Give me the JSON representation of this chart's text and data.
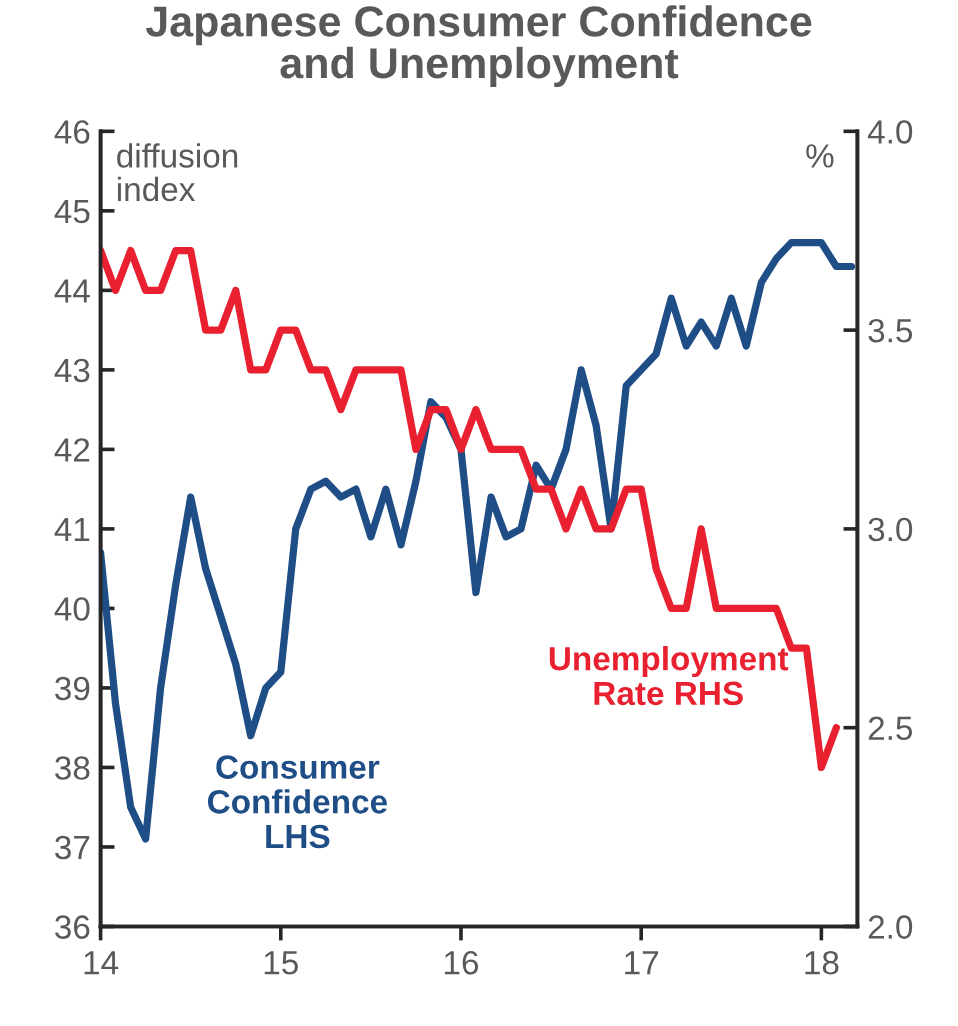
{
  "chart_data": {
    "type": "line",
    "title": "Japanese Consumer Confidence\nand Unemployment",
    "ylabel": "diffusion\nindex",
    "y2label": "%",
    "x": [
      14.0,
      14.083,
      14.167,
      14.25,
      14.333,
      14.417,
      14.5,
      14.583,
      14.667,
      14.75,
      14.833,
      14.917,
      15.0,
      15.083,
      15.167,
      15.25,
      15.333,
      15.417,
      15.5,
      15.583,
      15.667,
      15.75,
      15.833,
      15.917,
      16.0,
      16.083,
      16.167,
      16.25,
      16.333,
      16.417,
      16.5,
      16.583,
      16.667,
      16.75,
      16.833,
      16.917,
      17.0,
      17.083,
      17.167,
      17.25,
      17.333,
      17.417,
      17.5,
      17.583,
      17.667,
      17.75,
      17.833,
      17.917,
      18.0,
      18.083,
      18.167
    ],
    "series": [
      {
        "name": "Consumer\nConfidence\nLHS",
        "color": "#1f4e87",
        "values": [
          40.7,
          38.8,
          37.5,
          37.1,
          39.0,
          40.3,
          41.4,
          40.5,
          39.9,
          39.3,
          38.4,
          39.0,
          39.2,
          41.0,
          41.5,
          41.6,
          41.4,
          41.5,
          40.9,
          41.5,
          40.8,
          41.6,
          42.6,
          42.4,
          42.0,
          40.2,
          41.4,
          40.9,
          41.0,
          41.8,
          41.5,
          42.0,
          43.0,
          42.3,
          41.0,
          42.8,
          43.0,
          43.2,
          43.9,
          43.3,
          43.6,
          43.3,
          43.9,
          43.3,
          44.1,
          44.4,
          44.6,
          44.6,
          44.6,
          44.3,
          44.3
        ]
      },
      {
        "name": "Unemployment\nRate RHS",
        "color": "#e8202f",
        "axis": "y2",
        "values": [
          3.7,
          3.6,
          3.7,
          3.6,
          3.6,
          3.7,
          3.7,
          3.5,
          3.5,
          3.6,
          3.4,
          3.4,
          3.5,
          3.5,
          3.4,
          3.4,
          3.3,
          3.4,
          3.4,
          3.4,
          3.4,
          3.2,
          3.3,
          3.3,
          3.2,
          3.3,
          3.2,
          3.2,
          3.2,
          3.1,
          3.1,
          3.0,
          3.1,
          3.0,
          3.0,
          3.1,
          3.1,
          2.9,
          2.8,
          2.8,
          3.0,
          2.8,
          2.8,
          2.8,
          2.8,
          2.8,
          2.7,
          2.7,
          2.4,
          2.5,
          null
        ]
      }
    ],
    "xlim": [
      14,
      18.2
    ],
    "xticks": [
      14,
      15,
      16,
      17,
      18
    ],
    "ylim": [
      36,
      46
    ],
    "yticks": [
      36,
      37,
      38,
      39,
      40,
      41,
      42,
      43,
      44,
      45,
      46
    ],
    "y2lim": [
      2.0,
      4.0
    ],
    "y2ticks": [
      {
        "value": 2.0,
        "label": "2.0"
      },
      {
        "value": 2.5,
        "label": "2.5"
      },
      {
        "value": 3.0,
        "label": "3.0"
      },
      {
        "value": 3.5,
        "label": "3.5"
      },
      {
        "value": 4.0,
        "label": "4.0"
      }
    ],
    "grid": false,
    "legend": false,
    "marker": "none",
    "line_style": "solid"
  }
}
